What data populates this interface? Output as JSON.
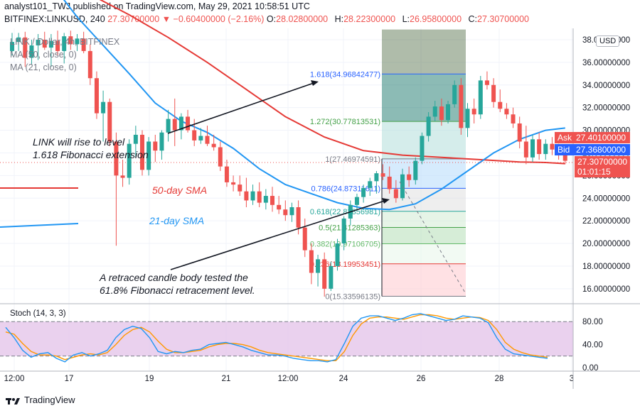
{
  "header": {
    "published": "analyst101_TWJ published on TradingView.com, May 29, 2021 10:58:51 UTC",
    "symbol": "BITFINEX:LINKUSD, 240",
    "last": "27.30700000",
    "change": "−0.60400000 (−2.16%)",
    "o_label": "O:",
    "o": "28.02800000",
    "h_label": "H:",
    "h": "28.22300000",
    "l_label": "L:",
    "l": "26.95800000",
    "c_label": "C:",
    "c": "27.30700000"
  },
  "legend": {
    "title": "LINK / Dollar, 4h, BITFINEX",
    "ma50": "MA (50, close, 0)",
    "ma21": "MA (21, close, 0)"
  },
  "currency_button": "USD",
  "price_tags": {
    "ask_label": "Ask",
    "ask": "27.40100000",
    "bid_label": "Bid",
    "bid": "27.36800000",
    "last": "27.30700000",
    "countdown": "01:01:15"
  },
  "stoch_label": "Stoch (14, 3, 3)",
  "footer_brand": "TradingView",
  "colors": {
    "up": "#26a69a",
    "down": "#ef5350",
    "ma21": "#2196f3",
    "ma50": "#e53935",
    "stoch_k": "#2196f3",
    "stoch_d": "#ff9800",
    "stoch_band": "#e1bee7"
  },
  "chart_data": {
    "type": "candlestick",
    "price_axis": {
      "ticks": [
        "38.00000000",
        "36.00000000",
        "34.00000000",
        "32.00000000",
        "30.00000000",
        "28.00000000",
        "26.00000000",
        "24.00000000",
        "22.00000000",
        "20.00000000",
        "18.00000000",
        "16.00000000"
      ],
      "range": [
        14.8,
        39
      ]
    },
    "time_axis": {
      "ticks": [
        "12:00",
        "17",
        "19",
        "21",
        "12:00",
        "24",
        "26",
        "28",
        "3"
      ]
    },
    "candles": [
      [
        37.0,
        38.6,
        36.6,
        37.8
      ],
      [
        37.8,
        38.6,
        37.0,
        38.2
      ],
      [
        38.2,
        38.7,
        35.6,
        36.4
      ],
      [
        36.4,
        38.0,
        35.8,
        37.5
      ],
      [
        37.5,
        38.5,
        36.2,
        38.0
      ],
      [
        38.0,
        38.7,
        37.1,
        37.3
      ],
      [
        37.3,
        38.5,
        35.6,
        37.9
      ],
      [
        37.9,
        38.8,
        36.6,
        37.0
      ],
      [
        37.0,
        38.6,
        35.9,
        38.3
      ],
      [
        38.3,
        38.8,
        37.1,
        37.6
      ],
      [
        37.6,
        38.5,
        37.0,
        38.1
      ],
      [
        38.1,
        38.7,
        36.8,
        37.0
      ],
      [
        37.0,
        37.6,
        34.0,
        34.6
      ],
      [
        34.6,
        35.2,
        31.0,
        31.5
      ],
      [
        31.5,
        33.5,
        29.0,
        32.5
      ],
      [
        32.5,
        32.8,
        28.6,
        29.0
      ],
      [
        29.0,
        29.8,
        19.8,
        26.0
      ],
      [
        26.0,
        27.4,
        25.0,
        25.8
      ],
      [
        25.8,
        29.2,
        25.2,
        28.8
      ],
      [
        28.8,
        30.4,
        27.6,
        29.6
      ],
      [
        29.6,
        30.0,
        26.0,
        26.5
      ],
      [
        26.5,
        29.4,
        26.0,
        29.0
      ],
      [
        29.0,
        29.6,
        27.2,
        28.2
      ],
      [
        28.2,
        30.0,
        27.4,
        29.8
      ],
      [
        29.8,
        31.8,
        29.0,
        31.0
      ],
      [
        31.0,
        32.8,
        28.6,
        30.0
      ],
      [
        30.0,
        31.5,
        29.2,
        31.2
      ],
      [
        31.2,
        31.8,
        29.8,
        30.0
      ],
      [
        30.0,
        31.0,
        28.6,
        29.1
      ],
      [
        29.1,
        30.2,
        28.8,
        29.5
      ],
      [
        29.5,
        30.4,
        28.6,
        28.8
      ],
      [
        28.8,
        29.6,
        28.2,
        28.5
      ],
      [
        28.5,
        29.0,
        26.4,
        26.8
      ],
      [
        26.8,
        27.4,
        25.0,
        25.4
      ],
      [
        25.4,
        26.0,
        24.6,
        25.2
      ],
      [
        25.2,
        26.0,
        24.2,
        24.6
      ],
      [
        24.6,
        25.8,
        23.2,
        23.8
      ],
      [
        23.8,
        25.2,
        23.4,
        24.6
      ],
      [
        24.6,
        25.4,
        23.2,
        23.6
      ],
      [
        23.6,
        24.8,
        23.0,
        24.2
      ],
      [
        24.2,
        25.0,
        22.8,
        23.4
      ],
      [
        23.4,
        24.2,
        22.6,
        23.0
      ],
      [
        23.0,
        23.8,
        22.0,
        22.5
      ],
      [
        22.5,
        23.6,
        21.9,
        23.2
      ],
      [
        23.2,
        23.8,
        20.8,
        21.4
      ],
      [
        21.4,
        22.2,
        18.8,
        19.4
      ],
      [
        19.4,
        20.0,
        16.4,
        17.4
      ],
      [
        17.4,
        19.0,
        16.2,
        18.6
      ],
      [
        18.6,
        19.2,
        15.3,
        16.0
      ],
      [
        16.0,
        18.4,
        15.8,
        18.0
      ],
      [
        18.0,
        20.4,
        17.6,
        20.0
      ],
      [
        20.0,
        22.4,
        19.4,
        22.2
      ],
      [
        22.2,
        23.8,
        21.6,
        23.4
      ],
      [
        23.4,
        24.4,
        22.8,
        24.1
      ],
      [
        24.1,
        25.2,
        23.6,
        24.9
      ],
      [
        24.9,
        25.8,
        24.2,
        25.5
      ],
      [
        25.5,
        26.4,
        24.4,
        26.2
      ],
      [
        26.2,
        27.0,
        25.6,
        25.9
      ],
      [
        25.9,
        26.8,
        24.4,
        24.8
      ],
      [
        24.8,
        25.6,
        23.6,
        24.0
      ],
      [
        24.0,
        26.6,
        23.8,
        26.1
      ],
      [
        26.1,
        26.8,
        25.0,
        25.6
      ],
      [
        25.6,
        27.6,
        25.2,
        27.3
      ],
      [
        27.3,
        29.8,
        27.0,
        29.5
      ],
      [
        29.5,
        31.6,
        29.0,
        31.2
      ],
      [
        31.2,
        32.6,
        30.8,
        32.1
      ],
      [
        32.1,
        32.8,
        30.4,
        30.9
      ],
      [
        30.9,
        32.6,
        30.6,
        32.3
      ],
      [
        32.3,
        34.4,
        32.0,
        34.0
      ],
      [
        34.0,
        34.6,
        29.6,
        30.2
      ],
      [
        30.2,
        32.4,
        29.4,
        31.9
      ],
      [
        31.9,
        32.8,
        30.6,
        31.4
      ],
      [
        31.4,
        34.8,
        31.0,
        34.4
      ],
      [
        34.4,
        35.2,
        33.6,
        34.0
      ],
      [
        34.0,
        34.6,
        32.0,
        32.5
      ],
      [
        32.5,
        33.6,
        31.6,
        31.9
      ],
      [
        31.9,
        32.4,
        31.0,
        31.4
      ],
      [
        31.4,
        32.0,
        30.2,
        30.6
      ],
      [
        30.6,
        31.2,
        28.4,
        29.0
      ],
      [
        29.0,
        30.4,
        27.0,
        27.6
      ],
      [
        27.6,
        29.6,
        27.2,
        29.2
      ],
      [
        29.2,
        29.8,
        27.4,
        27.9
      ],
      [
        27.9,
        29.2,
        27.4,
        28.8
      ],
      [
        28.8,
        29.4,
        27.8,
        28.3
      ],
      [
        28.3,
        28.8,
        27.4,
        28.0
      ],
      [
        28.0,
        28.6,
        27.0,
        27.3
      ]
    ],
    "ma21": [
      [
        6,
        43.0
      ],
      [
        10,
        40.0
      ],
      [
        14,
        37.5
      ],
      [
        18,
        35.0
      ],
      [
        22,
        32.4
      ],
      [
        26,
        30.8
      ],
      [
        30,
        29.8
      ],
      [
        34,
        28.4
      ],
      [
        38,
        26.6
      ],
      [
        42,
        25.2
      ],
      [
        46,
        24.4
      ],
      [
        50,
        23.6
      ],
      [
        54,
        23.1
      ],
      [
        58,
        23.0
      ],
      [
        62,
        23.5
      ],
      [
        66,
        24.8
      ],
      [
        70,
        26.4
      ],
      [
        74,
        28.0
      ],
      [
        78,
        29.2
      ],
      [
        82,
        30.0
      ],
      [
        85,
        30.2
      ]
    ],
    "ma50": [
      [
        6,
        43.5
      ],
      [
        12,
        42.0
      ],
      [
        18,
        40.2
      ],
      [
        24,
        38.2
      ],
      [
        30,
        36.0
      ],
      [
        36,
        33.6
      ],
      [
        42,
        31.2
      ],
      [
        48,
        29.4
      ],
      [
        54,
        28.2
      ],
      [
        60,
        27.8
      ],
      [
        66,
        27.6
      ],
      [
        72,
        27.4
      ],
      [
        78,
        27.2
      ],
      [
        82,
        27.15
      ],
      [
        85,
        27.05
      ]
    ],
    "fibonacci": [
      {
        "ratio": "1.618",
        "price": 34.96842477,
        "label": "1.618(34.96842477)",
        "color": "#2962ff"
      },
      {
        "ratio": "1.272",
        "price": 30.77813531,
        "label": "1.272(30.77813531)",
        "color": "#43a047"
      },
      {
        "ratio": "1",
        "price": 27.46974591,
        "label": "1(27.46974591)",
        "color": "#787b86"
      },
      {
        "ratio": "0.786",
        "price": 24.87311611,
        "label": "0.786(24.87311611)",
        "color": "#2962ff"
      },
      {
        "ratio": "0.618",
        "price": 22.83856981,
        "label": "0.618(22.83856981)",
        "color": "#26a69a"
      },
      {
        "ratio": "0.5",
        "price": 21.41285363,
        "label": "0.5(21.41285363)",
        "color": "#43a047"
      },
      {
        "ratio": "0.382",
        "price": 19.97106705,
        "label": "0.382(19.97106705)",
        "color": "#66bb6a"
      },
      {
        "ratio": "0.236",
        "price": 18.19953451,
        "label": "0.236(18.19953451)",
        "color": "#e53935"
      },
      {
        "ratio": "0",
        "price": 15.33596135,
        "label": "0(15.33596135)",
        "color": "#787b86"
      }
    ],
    "annotations": {
      "extension_note": [
        "LINK will rise to level",
        "1.618 Fibonacci extension"
      ],
      "retracement_note": [
        "A retraced candle body tested the",
        "61.8% Fibonacci retracement level."
      ],
      "sma50_label": "50-day SMA",
      "sma21_label": "21-day SMA"
    },
    "stochastic": {
      "y_ticks": [
        "80.00",
        "40.00",
        "0.00"
      ],
      "range": [
        0,
        100
      ],
      "bands": [
        20,
        80
      ],
      "k": [
        70,
        52,
        30,
        18,
        24,
        26,
        16,
        10,
        22,
        26,
        20,
        24,
        30,
        52,
        66,
        72,
        68,
        52,
        28,
        24,
        28,
        26,
        30,
        32,
        40,
        42,
        44,
        40,
        36,
        30,
        26,
        22,
        22,
        20,
        16,
        14,
        12,
        12,
        10,
        14,
        42,
        72,
        86,
        90,
        90,
        86,
        82,
        86,
        92,
        94,
        90,
        86,
        82,
        84,
        90,
        88,
        86,
        78,
        52,
        32,
        24,
        22,
        20,
        18,
        16
      ],
      "d": [
        62,
        58,
        42,
        28,
        22,
        22,
        20,
        14,
        18,
        22,
        24,
        22,
        26,
        40,
        56,
        66,
        70,
        62,
        46,
        32,
        26,
        26,
        28,
        30,
        36,
        40,
        42,
        42,
        40,
        36,
        30,
        26,
        24,
        22,
        20,
        18,
        16,
        14,
        12,
        12,
        28,
        56,
        76,
        86,
        88,
        88,
        86,
        84,
        88,
        92,
        92,
        90,
        86,
        84,
        86,
        88,
        87,
        82,
        66,
        44,
        32,
        26,
        22,
        20,
        18
      ]
    }
  }
}
